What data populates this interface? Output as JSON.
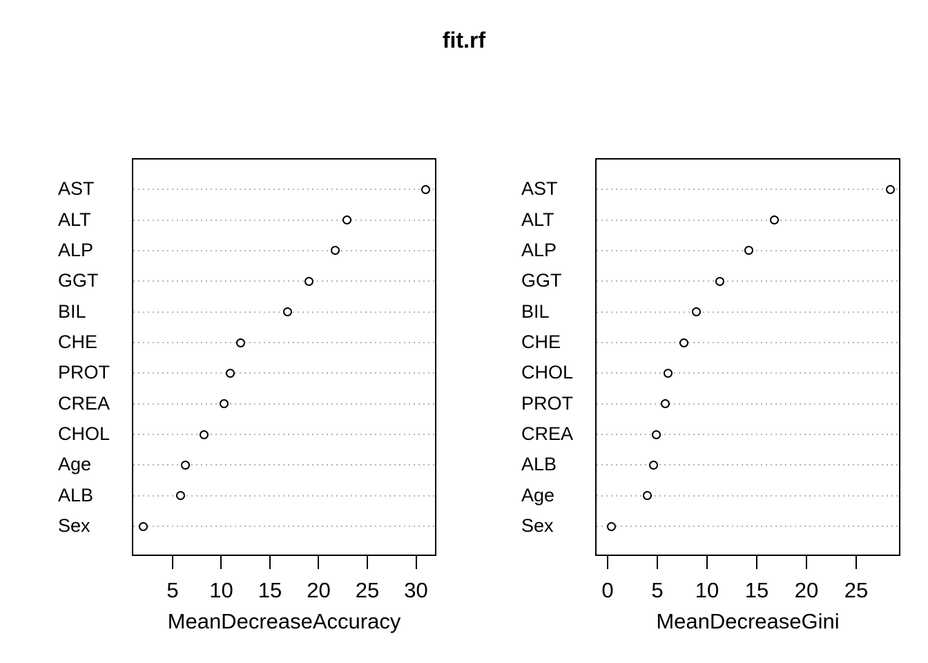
{
  "title": "fit.rf",
  "colors": {
    "background": "#ffffff",
    "foreground": "#000000",
    "gridline": "#b3b3b3",
    "point_stroke": "#000000",
    "point_fill": "#ffffff"
  },
  "chart_data": [
    {
      "type": "scatter",
      "subtype": "dotchart",
      "xlabel": "MeanDecreaseAccuracy",
      "ylabel": "",
      "grid": "horizontal dotted",
      "legend": "none",
      "xticks": [
        5,
        10,
        15,
        20,
        25,
        30
      ],
      "xlim": [
        0.82,
        32.09
      ],
      "categories_top_to_bottom": [
        "AST",
        "ALT",
        "ALP",
        "GGT",
        "BIL",
        "CHE",
        "PROT",
        "CREA",
        "CHOL",
        "Age",
        "ALB",
        "Sex"
      ],
      "values": [
        31.0,
        22.9,
        21.7,
        19.0,
        16.8,
        12.0,
        10.9,
        10.3,
        8.2,
        6.3,
        5.8,
        2.0
      ]
    },
    {
      "type": "scatter",
      "subtype": "dotchart",
      "xlabel": "MeanDecreaseGini",
      "ylabel": "",
      "grid": "horizontal dotted",
      "legend": "none",
      "xticks": [
        0,
        5,
        10,
        15,
        20,
        25
      ],
      "xlim": [
        -1.25,
        29.44
      ],
      "categories_top_to_bottom": [
        "AST",
        "ALT",
        "ALP",
        "GGT",
        "BIL",
        "CHE",
        "CHOL",
        "PROT",
        "CREA",
        "ALB",
        "Age",
        "Sex"
      ],
      "values": [
        28.4,
        16.8,
        14.2,
        11.3,
        8.9,
        7.7,
        6.1,
        5.8,
        4.9,
        4.6,
        4.0,
        0.4
      ]
    }
  ]
}
